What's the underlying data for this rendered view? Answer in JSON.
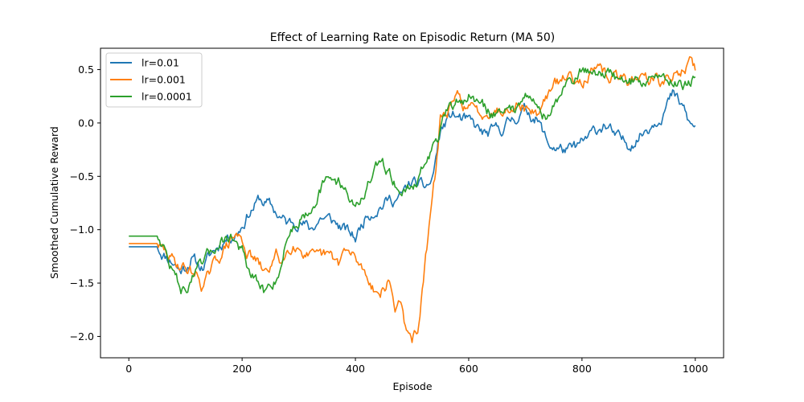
{
  "chart_data": {
    "type": "line",
    "title": "Effect of Learning Rate on Episodic Return (MA 50)",
    "xlabel": "Episode",
    "ylabel": "Smoothed Cumulative Reward",
    "xlim": [
      -50,
      1050
    ],
    "ylim": [
      -2.2,
      0.7
    ],
    "xticks": [
      0,
      200,
      400,
      600,
      800,
      1000
    ],
    "yticks": [
      -2.0,
      -1.5,
      -1.0,
      -0.5,
      0.0,
      0.5
    ],
    "xtick_labels": [
      "0",
      "200",
      "400",
      "600",
      "800",
      "1000"
    ],
    "ytick_labels": [
      "−2.0",
      "−1.5",
      "−1.0",
      "−0.5",
      "0.0",
      "0.5"
    ],
    "grid": false,
    "legend_position": "top-left",
    "series": [
      {
        "name": "lr=0.01",
        "color": "#1f77b4",
        "x": [
          0,
          50,
          60,
          80,
          90,
          100,
          110,
          120,
          130,
          150,
          170,
          190,
          200,
          210,
          230,
          245,
          260,
          280,
          300,
          320,
          340,
          360,
          380,
          400,
          420,
          440,
          460,
          480,
          500,
          520,
          535,
          550,
          570,
          600,
          630,
          660,
          680,
          700,
          720,
          740,
          760,
          780,
          800,
          820,
          840,
          860,
          880,
          900,
          920,
          940,
          960,
          980,
          990,
          1000
        ],
        "y": [
          -1.16,
          -1.16,
          -1.22,
          -1.3,
          -1.38,
          -1.35,
          -1.26,
          -1.32,
          -1.35,
          -1.2,
          -1.08,
          -1.02,
          -0.95,
          -0.85,
          -0.72,
          -0.76,
          -0.84,
          -0.95,
          -0.9,
          -1.0,
          -0.88,
          -0.92,
          -1.0,
          -1.08,
          -0.85,
          -0.78,
          -0.72,
          -0.7,
          -0.55,
          -0.62,
          -0.55,
          -0.08,
          0.08,
          0.0,
          -0.12,
          -0.05,
          0.05,
          0.12,
          0.05,
          -0.2,
          -0.24,
          -0.27,
          -0.2,
          -0.1,
          0.0,
          -0.15,
          -0.2,
          -0.12,
          -0.02,
          0.1,
          0.26,
          0.12,
          -0.02,
          -0.05
        ]
      },
      {
        "name": "lr=0.001",
        "color": "#ff7f0e",
        "x": [
          0,
          50,
          60,
          80,
          100,
          120,
          130,
          140,
          160,
          180,
          190,
          200,
          210,
          225,
          240,
          260,
          270,
          290,
          310,
          330,
          350,
          370,
          380,
          400,
          420,
          440,
          450,
          460,
          470,
          480,
          490,
          500,
          510,
          520,
          530,
          540,
          550,
          560,
          580,
          600,
          620,
          640,
          660,
          680,
          700,
          720,
          740,
          760,
          780,
          800,
          820,
          840,
          860,
          880,
          900,
          920,
          940,
          960,
          980,
          990,
          1000
        ],
        "y": [
          -1.13,
          -1.13,
          -1.2,
          -1.3,
          -1.36,
          -1.42,
          -1.52,
          -1.45,
          -1.25,
          -1.1,
          -1.05,
          -1.1,
          -1.22,
          -1.3,
          -1.42,
          -1.25,
          -1.3,
          -1.1,
          -1.2,
          -1.3,
          -1.25,
          -1.32,
          -1.2,
          -1.28,
          -1.42,
          -1.6,
          -1.55,
          -1.48,
          -1.75,
          -1.62,
          -2.0,
          -2.05,
          -1.92,
          -1.5,
          -1.0,
          -0.55,
          0.05,
          0.08,
          0.22,
          0.14,
          0.08,
          0.15,
          0.12,
          0.22,
          0.15,
          0.08,
          0.28,
          0.38,
          0.45,
          0.42,
          0.48,
          0.45,
          0.42,
          0.4,
          0.44,
          0.42,
          0.38,
          0.42,
          0.52,
          0.56,
          0.48
        ]
      },
      {
        "name": "lr=0.0001",
        "color": "#2ca02c",
        "x": [
          0,
          50,
          60,
          70,
          80,
          90,
          100,
          110,
          130,
          150,
          160,
          180,
          200,
          210,
          225,
          240,
          260,
          270,
          280,
          300,
          320,
          340,
          360,
          380,
          400,
          410,
          420,
          440,
          460,
          480,
          500,
          520,
          540,
          560,
          580,
          600,
          620,
          640,
          660,
          680,
          700,
          720,
          740,
          760,
          780,
          800,
          820,
          840,
          860,
          880,
          900,
          920,
          940,
          960,
          980,
          1000
        ],
        "y": [
          -1.06,
          -1.06,
          -1.12,
          -1.3,
          -1.42,
          -1.52,
          -1.6,
          -1.45,
          -1.35,
          -1.18,
          -1.1,
          -1.05,
          -1.2,
          -1.4,
          -1.5,
          -1.6,
          -1.45,
          -1.3,
          -1.05,
          -0.9,
          -0.78,
          -0.6,
          -0.52,
          -0.58,
          -0.8,
          -0.7,
          -0.62,
          -0.4,
          -0.45,
          -0.65,
          -0.6,
          -0.42,
          -0.2,
          0.05,
          0.2,
          0.25,
          0.18,
          0.08,
          0.15,
          0.1,
          0.35,
          0.15,
          0.05,
          0.25,
          0.4,
          0.48,
          0.5,
          0.48,
          0.42,
          0.4,
          0.38,
          0.42,
          0.45,
          0.4,
          0.38,
          0.42
        ]
      }
    ]
  }
}
